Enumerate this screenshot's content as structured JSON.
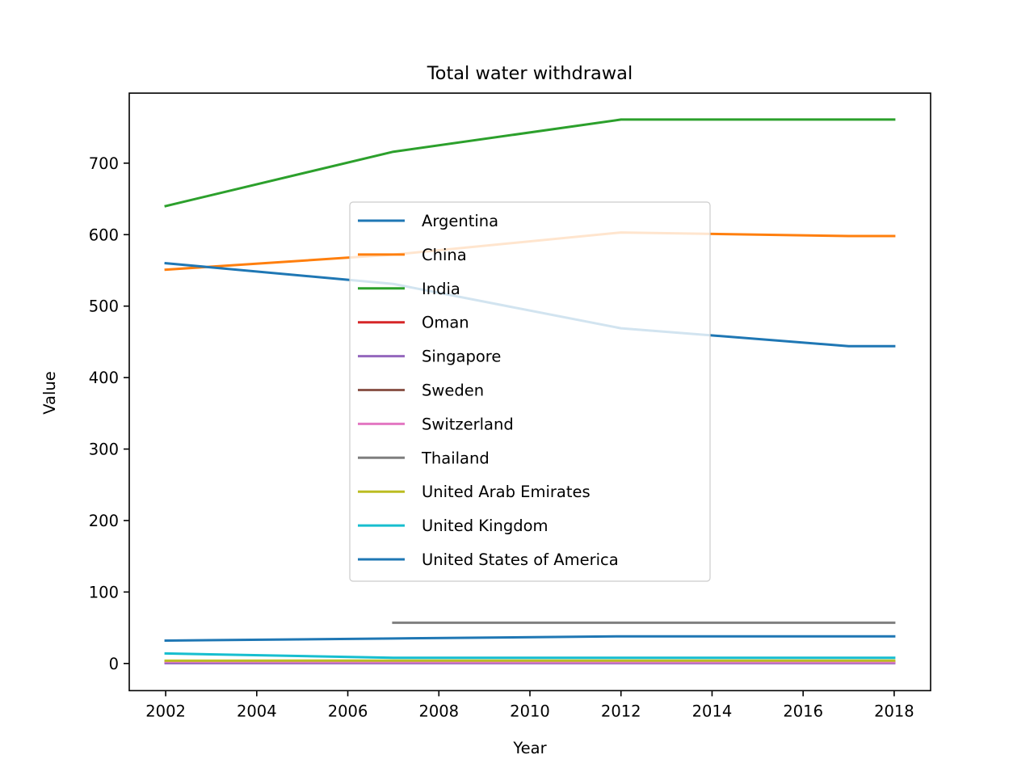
{
  "chart_data": {
    "type": "line",
    "title": "Total water withdrawal",
    "xlabel": "Year",
    "ylabel": "Value",
    "xlim": [
      2001.2,
      2018.8
    ],
    "ylim": [
      -38,
      798
    ],
    "xticks": [
      2002,
      2004,
      2006,
      2008,
      2010,
      2012,
      2014,
      2016,
      2018
    ],
    "yticks": [
      0,
      100,
      200,
      300,
      400,
      500,
      600,
      700
    ],
    "legend_position": "center",
    "grid": false,
    "series": [
      {
        "name": "Argentina",
        "color": "#1f77b4",
        "x": [
          2002,
          2007,
          2012,
          2017,
          2018
        ],
        "y": [
          32,
          35,
          38,
          38,
          38
        ]
      },
      {
        "name": "China",
        "color": "#ff7f0e",
        "x": [
          2002,
          2007,
          2012,
          2017,
          2018
        ],
        "y": [
          551,
          572,
          603,
          598,
          598
        ]
      },
      {
        "name": "India",
        "color": "#2ca02c",
        "x": [
          2002,
          2007,
          2012,
          2017,
          2018
        ],
        "y": [
          640,
          716,
          761,
          761,
          761
        ]
      },
      {
        "name": "Oman",
        "color": "#d62728",
        "x": [
          2002,
          2007,
          2012,
          2017,
          2018
        ],
        "y": [
          1.3,
          1.3,
          1.3,
          1.3,
          1.3
        ]
      },
      {
        "name": "Singapore",
        "color": "#9467bd",
        "x": [
          2002,
          2007,
          2012,
          2017,
          2018
        ],
        "y": [
          0.5,
          0.5,
          0.5,
          0.5,
          0.5
        ]
      },
      {
        "name": "Sweden",
        "color": "#8c564b",
        "x": [
          2002,
          2007,
          2012,
          2017,
          2018
        ],
        "y": [
          2.7,
          2.7,
          2.6,
          2.6,
          2.6
        ]
      },
      {
        "name": "Switzerland",
        "color": "#e377c2",
        "x": [
          2002,
          2007,
          2012,
          2017,
          2018
        ],
        "y": [
          2.6,
          2.0,
          1.9,
          1.9,
          1.9
        ]
      },
      {
        "name": "Thailand",
        "color": "#7f7f7f",
        "x": [
          2007,
          2012,
          2017,
          2018
        ],
        "y": [
          57,
          57,
          57,
          57
        ]
      },
      {
        "name": "United Arab Emirates",
        "color": "#bcbd22",
        "x": [
          2002,
          2007,
          2012,
          2017,
          2018
        ],
        "y": [
          3.9,
          4.0,
          4.0,
          4.0,
          4.0
        ]
      },
      {
        "name": "United Kingdom",
        "color": "#17becf",
        "x": [
          2002,
          2007,
          2012,
          2017,
          2018
        ],
        "y": [
          14,
          8,
          8,
          8,
          8
        ]
      },
      {
        "name": "United States of America",
        "color": "#1f77b4",
        "x": [
          2002,
          2007,
          2012,
          2017,
          2018
        ],
        "y": [
          560,
          531,
          469,
          444,
          444
        ]
      }
    ]
  }
}
